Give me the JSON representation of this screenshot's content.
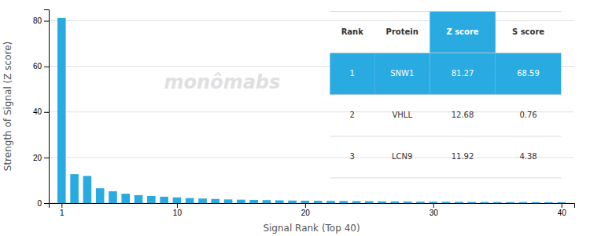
{
  "chart_data": {
    "type": "bar",
    "x": [
      1,
      2,
      3,
      4,
      5,
      6,
      7,
      8,
      9,
      10,
      11,
      12,
      13,
      14,
      15,
      16,
      17,
      18,
      19,
      20,
      21,
      22,
      23,
      24,
      25,
      26,
      27,
      28,
      29,
      30,
      31,
      32,
      33,
      34,
      35,
      36,
      37,
      38,
      39,
      40
    ],
    "values": [
      81.27,
      12.68,
      11.92,
      6.5,
      5.2,
      4.1,
      3.5,
      3.1,
      2.8,
      2.5,
      2.2,
      2.0,
      1.8,
      1.6,
      1.5,
      1.4,
      1.3,
      1.2,
      1.1,
      1.05,
      1.0,
      0.95,
      0.9,
      0.85,
      0.8,
      0.75,
      0.7,
      0.65,
      0.6,
      0.58,
      0.55,
      0.52,
      0.5,
      0.48,
      0.46,
      0.44,
      0.42,
      0.4,
      0.38,
      0.36
    ],
    "color": "#29ABE2",
    "xlabel": "Signal Rank (Top 40)",
    "ylabel": "Strength of Signal (Z score)",
    "xlim": [
      0.0,
      41
    ],
    "ylim": [
      0,
      85
    ],
    "xticks": [
      1,
      10,
      20,
      30,
      40
    ],
    "yticks": [
      0,
      20,
      40,
      60,
      80
    ],
    "grid": true,
    "annotations": [
      "monômabs"
    ],
    "table": {
      "columns": [
        "Rank",
        "Protein",
        "Z score",
        "S score"
      ],
      "rows": [
        [
          "1",
          "SNW1",
          "81.27",
          "68.59"
        ],
        [
          "2",
          "VHLL",
          "12.68",
          "0.76"
        ],
        [
          "3",
          "LCN9",
          "11.92",
          "4.38"
        ]
      ]
    }
  }
}
